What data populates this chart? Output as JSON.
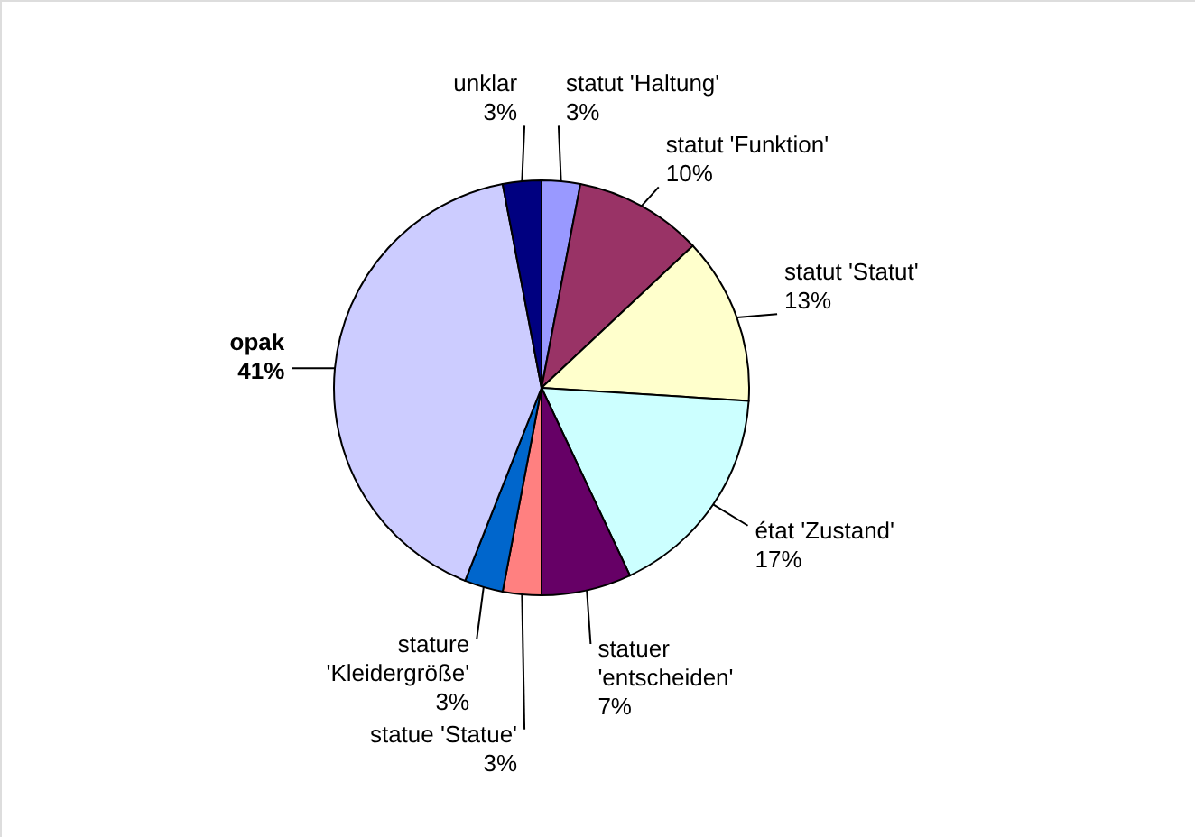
{
  "chart_data": {
    "type": "pie",
    "categories": [
      "statut 'Haltung'",
      "statut 'Funktion'",
      "statut 'Statut'",
      "état 'Zustand'",
      "statuer 'entscheiden'",
      "statue 'Statue'",
      "stature 'Kleidergröße'",
      "opak",
      "unklar"
    ],
    "values": [
      3,
      10,
      13,
      17,
      7,
      3,
      3,
      41,
      3
    ],
    "colors": [
      "#9999ff",
      "#993366",
      "#ffffcc",
      "#ccffff",
      "#660066",
      "#ff8080",
      "#0066cc",
      "#ccccff",
      "#000080"
    ],
    "value_labels": [
      "3%",
      "10%",
      "13%",
      "17%",
      "7%",
      "3%",
      "3%",
      "41%",
      "3%"
    ]
  }
}
